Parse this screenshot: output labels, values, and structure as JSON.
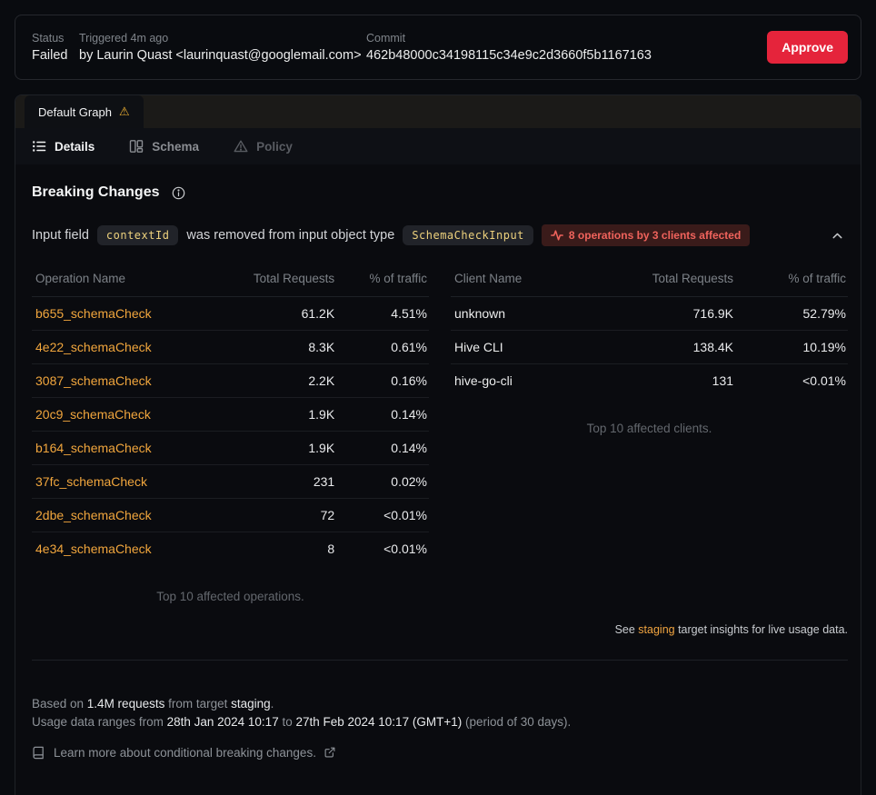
{
  "header": {
    "status_label": "Status",
    "status_value": "Failed",
    "triggered_label": "Triggered 4m ago",
    "triggered_by": "by Laurin Quast <laurinquast@googlemail.com>",
    "commit_label": "Commit",
    "commit_value": "462b48000c34198115c34e9c2d3660f5b1167163",
    "approve_label": "Approve"
  },
  "tabs": {
    "graph_tab_label": "Default Graph",
    "warning_glyph": "⚠",
    "nav": [
      {
        "label": "Details"
      },
      {
        "label": "Schema"
      },
      {
        "label": "Policy"
      }
    ]
  },
  "breaking_changes": {
    "title": "Breaking Changes",
    "change": {
      "prefix": "Input field",
      "field_code": "contextId",
      "middle": "was removed from input object type",
      "type_code": "SchemaCheckInput",
      "badge": "8 operations by 3 clients affected"
    }
  },
  "operations_table": {
    "headers": [
      "Operation Name",
      "Total Requests",
      "% of traffic"
    ],
    "rows": [
      [
        "b655_schemaCheck",
        "61.2K",
        "4.51%"
      ],
      [
        "4e22_schemaCheck",
        "8.3K",
        "0.61%"
      ],
      [
        "3087_schemaCheck",
        "2.2K",
        "0.16%"
      ],
      [
        "20c9_schemaCheck",
        "1.9K",
        "0.14%"
      ],
      [
        "b164_schemaCheck",
        "1.9K",
        "0.14%"
      ],
      [
        "37fc_schemaCheck",
        "231",
        "0.02%"
      ],
      [
        "2dbe_schemaCheck",
        "72",
        "<0.01%"
      ],
      [
        "4e34_schemaCheck",
        "8",
        "<0.01%"
      ]
    ],
    "caption": "Top 10 affected operations."
  },
  "clients_table": {
    "headers": [
      "Client Name",
      "Total Requests",
      "% of traffic"
    ],
    "rows": [
      [
        "unknown",
        "716.9K",
        "52.79%"
      ],
      [
        "Hive CLI",
        "138.4K",
        "10.19%"
      ],
      [
        "hive-go-cli",
        "131",
        "<0.01%"
      ]
    ],
    "caption": "Top 10 affected clients."
  },
  "insights_note": {
    "prefix": "See ",
    "link": "staging",
    "suffix": " target insights for live usage data."
  },
  "footer": {
    "line1": [
      {
        "t": "Based on ",
        "em": false
      },
      {
        "t": "1.4M requests",
        "em": true
      },
      {
        "t": " from target ",
        "em": false
      },
      {
        "t": "staging",
        "em": true
      },
      {
        "t": ".",
        "em": false
      }
    ],
    "line2": [
      {
        "t": "Usage data ranges from ",
        "em": false
      },
      {
        "t": "28th Jan 2024 10:17",
        "em": true
      },
      {
        "t": " to ",
        "em": false
      },
      {
        "t": "27th Feb 2024 10:17 (GMT+1)",
        "em": true
      },
      {
        "t": " (period of 30 days).",
        "em": false
      }
    ],
    "learn_more": "Learn more about conditional breaking changes."
  },
  "colors": {
    "approve_red": "#e5243b",
    "warning_yellow": "#f0b232",
    "operation_link_orange": "#f1a63d",
    "code_text_yellow": "#edd17d",
    "affected_badge_red": "#f0635c",
    "affected_badge_bg": "#3a1b1a"
  }
}
